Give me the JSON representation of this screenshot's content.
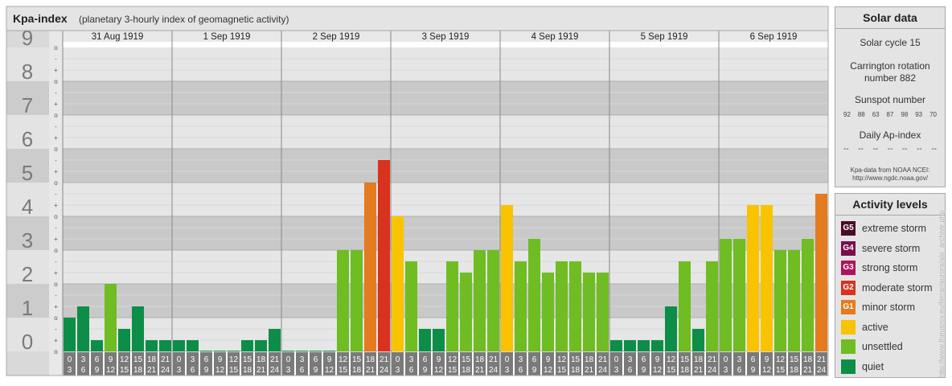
{
  "header": {
    "title": "Kpa-index",
    "subtitle": "(planetary 3-hourly index of geomagnetic activity)"
  },
  "chart_data": {
    "type": "bar",
    "title": "Kpa-index",
    "subtitle": "(planetary 3-hourly index of geomagnetic activity)",
    "ylim": [
      0,
      9
    ],
    "y_ticks": [
      "0",
      "1",
      "2",
      "3",
      "4",
      "5",
      "6",
      "7",
      "8",
      "9"
    ],
    "minor_ticks": [
      "o",
      "+",
      "-"
    ],
    "days": [
      "31 Aug 1919",
      "1 Sep 1919",
      "2 Sep 1919",
      "3 Sep 1919",
      "4 Sep 1919",
      "5 Sep 1919",
      "6 Sep 1919"
    ],
    "interval_labels": [
      [
        "0",
        "3"
      ],
      [
        "3",
        "6"
      ],
      [
        "6",
        "9"
      ],
      [
        "9",
        "12"
      ],
      [
        "12",
        "15"
      ],
      [
        "15",
        "18"
      ],
      [
        "18",
        "21"
      ],
      [
        "21",
        "24"
      ]
    ],
    "values": [
      [
        1.0,
        1.333,
        0.333,
        2.0,
        0.667,
        1.333,
        0.333,
        0.333
      ],
      [
        0.333,
        0.333,
        0.0,
        0.0,
        0.0,
        0.333,
        0.333,
        0.667
      ],
      [
        0.0,
        0.0,
        0.0,
        0.0,
        3.0,
        3.0,
        5.0,
        5.667
      ],
      [
        4.0,
        2.667,
        0.667,
        0.667,
        2.667,
        2.333,
        3.0,
        3.0
      ],
      [
        4.333,
        2.667,
        3.333,
        2.333,
        2.667,
        2.667,
        2.333,
        2.333
      ],
      [
        0.333,
        0.333,
        0.333,
        0.333,
        1.333,
        2.667,
        0.667,
        2.667
      ],
      [
        3.333,
        3.333,
        4.333,
        4.333,
        3.0,
        3.0,
        3.333,
        4.667
      ]
    ],
    "level_colors": {
      "quiet": "#0c8e48",
      "unsettled": "#6fbd22",
      "active": "#f9c300",
      "minor": "#e47b1f",
      "moderate": "#d9321f",
      "strong": "#b0125a",
      "severe": "#7c0e4b",
      "extreme": "#4b0a2c"
    },
    "grid": true
  },
  "solar": {
    "title": "Solar data",
    "cycle": "Solar cycle 15",
    "carrington_line1": "Carrington rotation",
    "carrington_line2": "number 882",
    "sunspot_title": "Sunspot number",
    "sunspot_values": [
      "92",
      "88",
      "63",
      "87",
      "98",
      "93",
      "70"
    ],
    "ap_title": "Daily Ap-index",
    "ap_values": [
      "--",
      "--",
      "--",
      "--",
      "--",
      "--",
      "--"
    ],
    "source_line1": "Kpa-data from NOAA NCEI:",
    "source_line2": "http://www.ngdc.noaa.gov/"
  },
  "legend": {
    "title": "Activity levels",
    "items": [
      {
        "code": "G5",
        "label": "extreme storm",
        "color": "#4b0a2c"
      },
      {
        "code": "G4",
        "label": "severe storm",
        "color": "#7c0e4b"
      },
      {
        "code": "G3",
        "label": "strong storm",
        "color": "#b0125a"
      },
      {
        "code": "G2",
        "label": "moderate storm",
        "color": "#d9321f"
      },
      {
        "code": "G1",
        "label": "minor storm",
        "color": "#e47b1f"
      },
      {
        "code": "",
        "label": "active",
        "color": "#f9c300"
      },
      {
        "code": "",
        "label": "unsettled",
        "color": "#6fbd22"
      },
      {
        "code": "",
        "label": "quiet",
        "color": "#0c8e48"
      }
    ]
  },
  "watermark": "http://www.theusrcy.eu/ferrar/aurora/alo_archive.php"
}
